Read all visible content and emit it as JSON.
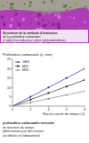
{
  "chart_data": {
    "type": "line",
    "title": "Profondeur carbonatée (x, mm)",
    "x_label": "Racine carrée du temps (√t)",
    "x": [
      0,
      2,
      4,
      6,
      8
    ],
    "series": [
      {
        "name": "GEN",
        "color": "#1f3f8f",
        "marker": "diamond",
        "values": [
          0,
          5,
          10,
          15,
          20
        ]
      },
      {
        "name": "M25",
        "color": "#333333",
        "marker": "square",
        "values": [
          0,
          3.5,
          7,
          10.5,
          14
        ]
      },
      {
        "name": "M30",
        "color": "#888888",
        "marker": "triangle",
        "values": [
          0,
          2,
          4,
          6,
          8
        ]
      }
    ],
    "xlim": [
      0,
      8
    ],
    "xticks": [
      0,
      2,
      4,
      6,
      8
    ],
    "ylim": [
      0,
      25
    ],
    "yticks": [
      0,
      5,
      10,
      15,
      20,
      25
    ],
    "legend": "top-left",
    "grid": false
  },
  "photo_caption": [
    "Illustration de la méthode d'évaluation",
    "de la profondeur carbonatée",
    "à l'aide d'un indicateur coloré (phénolphtaléine)"
  ],
  "chart_caption": [
    "profondeur carbonatée mesurée",
    "en fonction du temps",
    "(déterminée par des essais",
    "accélérés en laboratoire)"
  ]
}
